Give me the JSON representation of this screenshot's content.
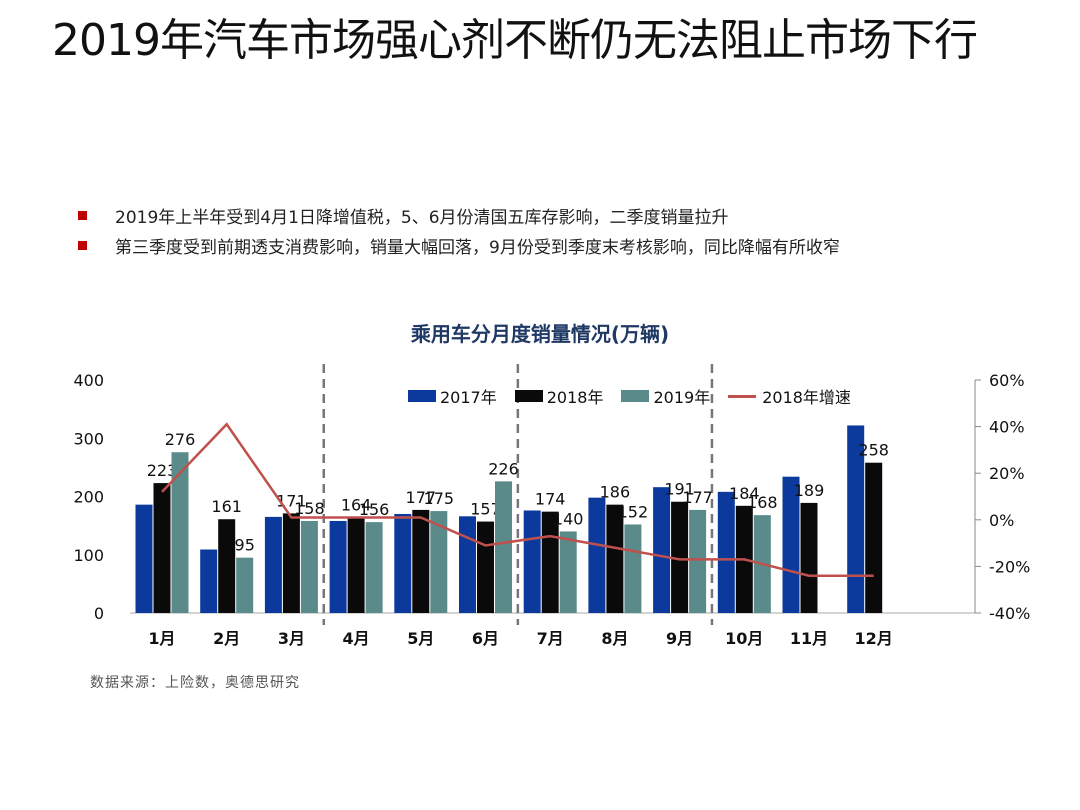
{
  "page": {
    "title": "2019年汽车市场强心剂不断仍无法阻止市场下行",
    "bullets": [
      "2019年上半年受到4月1日降增值税，5、6月份清国五库存影响，二季度销量拉升",
      "第三季度受到前期透支消费影响，销量大幅回落，9月份受到季度末考核影响，同比降幅有所收窄"
    ],
    "source": "数据来源：上险数，奥德思研究"
  },
  "chart_data": {
    "type": "bar",
    "title": "乘用车分月度销量情况(万辆)",
    "categories": [
      "1月",
      "2月",
      "3月",
      "4月",
      "5月",
      "6月",
      "7月",
      "8月",
      "9月",
      "10月",
      "11月",
      "12月"
    ],
    "series": [
      {
        "name": "2017年",
        "kind": "bar",
        "axis": "left",
        "color": "#0b3a9c",
        "values": [
          186,
          109,
          165,
          158,
          170,
          166,
          176,
          198,
          216,
          208,
          234,
          322
        ],
        "labels": [
          null,
          null,
          null,
          null,
          null,
          null,
          null,
          null,
          null,
          null,
          null,
          null
        ]
      },
      {
        "name": "2018年",
        "kind": "bar",
        "axis": "left",
        "color": "#0a0a0a",
        "values": [
          223,
          161,
          171,
          164,
          177,
          157,
          174,
          186,
          191,
          184,
          189,
          258
        ],
        "labels": [
          "223",
          "161",
          "171",
          "164",
          "177",
          "157",
          "174",
          "186",
          "191",
          "184",
          "189",
          "258"
        ]
      },
      {
        "name": "2019年",
        "kind": "bar",
        "axis": "left",
        "color": "#5a8a8a",
        "values": [
          276,
          95,
          158,
          156,
          175,
          226,
          140,
          152,
          177,
          168,
          null,
          null
        ],
        "labels": [
          "276",
          "95",
          "158",
          "156",
          "175",
          "226",
          "140",
          "152",
          "177",
          "168",
          null,
          null
        ]
      },
      {
        "name": "2018年增速",
        "kind": "line",
        "axis": "right",
        "color": "#c0504d",
        "values": [
          12,
          41,
          1,
          1,
          1,
          -11,
          -7,
          -12,
          -17,
          -17,
          -24,
          -24
        ]
      }
    ],
    "left_axis": {
      "min": 0,
      "max": 400,
      "ticks": [
        "0",
        "100",
        "200",
        "300",
        "400"
      ]
    },
    "right_axis": {
      "min": -40,
      "max": 60,
      "ticks": [
        "-40%",
        "-20%",
        "0%",
        "20%",
        "40%",
        "60%"
      ]
    },
    "quarter_dividers": [
      3,
      6,
      9
    ],
    "legend_position": "top"
  }
}
